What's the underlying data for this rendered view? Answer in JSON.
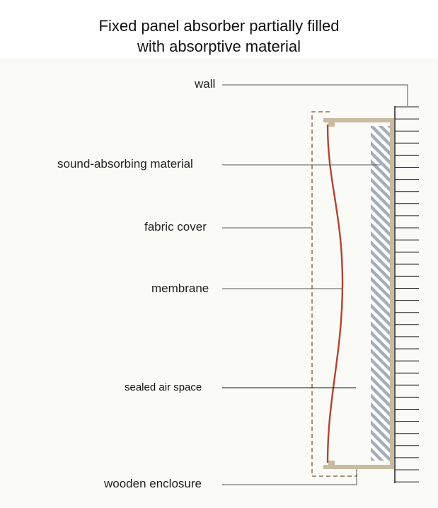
{
  "title": {
    "line1": "Fixed panel absorber partially filled",
    "line2": "with absorptive material"
  },
  "labels": {
    "wall": "wall",
    "sound_absorbing_material": "sound-absorbing material",
    "fabric_cover": "fabric cover",
    "membrane": "membrane",
    "sealed_air_space": "sealed air space",
    "wooden_enclosure": "wooden enclosure"
  },
  "colors": {
    "wood": "#c8bba0",
    "membrane": "#b5432f",
    "fabric": "#8a7150",
    "hatch": "#a3aebb",
    "leader": "#555555",
    "wall_line": "#222222"
  }
}
